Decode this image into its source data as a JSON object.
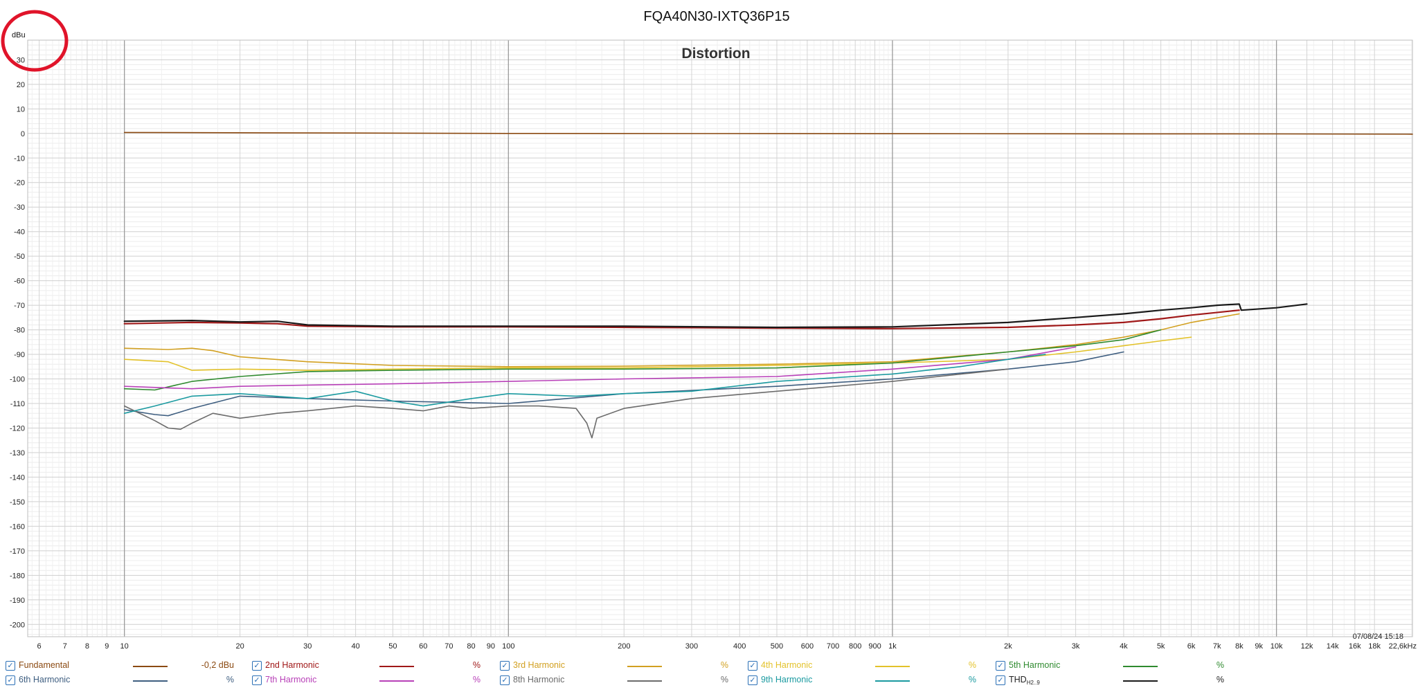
{
  "window": {
    "title": "FQA40N30-IXTQ36P15",
    "timestamp": "07/08/24 15:18"
  },
  "chart_data": {
    "type": "line",
    "title": "Distortion",
    "ylabel": "dBu",
    "xlabel": "",
    "xscale": "log",
    "xlim": [
      5.6,
      22600
    ],
    "ylim": [
      -205,
      38
    ],
    "grid": true,
    "x_ticks": [
      {
        "v": 6,
        "label": "6"
      },
      {
        "v": 7,
        "label": "7"
      },
      {
        "v": 8,
        "label": "8"
      },
      {
        "v": 9,
        "label": "9"
      },
      {
        "v": 10,
        "label": "10"
      },
      {
        "v": 20,
        "label": "20"
      },
      {
        "v": 30,
        "label": "30"
      },
      {
        "v": 40,
        "label": "40"
      },
      {
        "v": 50,
        "label": "50"
      },
      {
        "v": 60,
        "label": "60"
      },
      {
        "v": 70,
        "label": "70"
      },
      {
        "v": 80,
        "label": "80"
      },
      {
        "v": 90,
        "label": "90"
      },
      {
        "v": 100,
        "label": "100"
      },
      {
        "v": 200,
        "label": "200"
      },
      {
        "v": 300,
        "label": "300"
      },
      {
        "v": 400,
        "label": "400"
      },
      {
        "v": 500,
        "label": "500"
      },
      {
        "v": 600,
        "label": "600"
      },
      {
        "v": 700,
        "label": "700"
      },
      {
        "v": 800,
        "label": "800"
      },
      {
        "v": 900,
        "label": "900"
      },
      {
        "v": 1000,
        "label": "1k"
      },
      {
        "v": 2000,
        "label": "2k"
      },
      {
        "v": 3000,
        "label": "3k"
      },
      {
        "v": 4000,
        "label": "4k"
      },
      {
        "v": 5000,
        "label": "5k"
      },
      {
        "v": 6000,
        "label": "6k"
      },
      {
        "v": 7000,
        "label": "7k"
      },
      {
        "v": 8000,
        "label": "8k"
      },
      {
        "v": 9000,
        "label": "9k"
      },
      {
        "v": 10000,
        "label": "10k"
      },
      {
        "v": 12000,
        "label": "12k"
      },
      {
        "v": 14000,
        "label": "14k"
      },
      {
        "v": 16000,
        "label": "16k"
      },
      {
        "v": 18000,
        "label": "18k"
      },
      {
        "v": 22600,
        "label": "22,6kHz"
      }
    ],
    "y_ticks": [
      30,
      20,
      10,
      0,
      -10,
      -20,
      -30,
      -40,
      -50,
      -60,
      -70,
      -80,
      -90,
      -100,
      -110,
      -120,
      -130,
      -140,
      -150,
      -160,
      -170,
      -180,
      -190,
      -200
    ],
    "series": [
      {
        "name": "Fundamental",
        "color": "#8b4a12",
        "x": [
          10,
          100,
          1000,
          10000,
          22600
        ],
        "y": [
          0.4,
          0.0,
          -0.1,
          -0.2,
          -0.3
        ]
      },
      {
        "name": "2nd Harmonic",
        "color": "#a01818",
        "x": [
          10,
          15,
          20,
          25,
          30,
          50,
          100,
          200,
          500,
          1000,
          2000,
          3000,
          4000,
          5000,
          6000,
          8000
        ],
        "y": [
          -77.5,
          -77,
          -77.2,
          -77.5,
          -78.5,
          -78.8,
          -78.8,
          -79,
          -79.3,
          -79.5,
          -79,
          -78,
          -77,
          -75.5,
          -74,
          -72
        ]
      },
      {
        "name": "3rd Harmonic",
        "color": "#d2a020",
        "x": [
          10,
          13,
          15,
          17,
          20,
          30,
          50,
          100,
          200,
          500,
          1000,
          2000,
          3000,
          4000,
          5000,
          6000,
          8000
        ],
        "y": [
          -87.5,
          -88,
          -87.5,
          -88.5,
          -91,
          -93,
          -94.5,
          -95,
          -94.8,
          -94,
          -93,
          -89,
          -86,
          -83,
          -80,
          -77,
          -73.5
        ]
      },
      {
        "name": "4th Harmonic",
        "color": "#e3c22a",
        "x": [
          10,
          13,
          15,
          20,
          30,
          50,
          100,
          200,
          500,
          1000,
          2000,
          3000,
          4000,
          5000,
          6000
        ],
        "y": [
          -92,
          -93,
          -96.5,
          -96,
          -96.5,
          -96,
          -95.5,
          -95.5,
          -94.5,
          -93.5,
          -92,
          -89,
          -86.5,
          -84.5,
          -83
        ]
      },
      {
        "name": "5th Harmonic",
        "color": "#2f8a2f",
        "x": [
          10,
          12,
          15,
          20,
          30,
          50,
          100,
          200,
          500,
          1000,
          2000,
          3000,
          4000,
          5000
        ],
        "y": [
          -104,
          -104.5,
          -101,
          -99,
          -97,
          -96.5,
          -96,
          -96,
          -95.5,
          -93.5,
          -89,
          -86.5,
          -84,
          -80
        ]
      },
      {
        "name": "6th Harmonic",
        "color": "#3e5e80",
        "x": [
          10,
          12,
          13,
          15,
          20,
          30,
          50,
          100,
          200,
          500,
          1000,
          2000,
          3000,
          4000
        ],
        "y": [
          -112.5,
          -114.5,
          -115,
          -112,
          -107,
          -108,
          -109,
          -110,
          -106,
          -103,
          -100,
          -96,
          -93,
          -89
        ]
      },
      {
        "name": "7th Harmonic",
        "color": "#b840b8",
        "x": [
          10,
          15,
          20,
          30,
          50,
          100,
          200,
          500,
          1000,
          2000,
          3000
        ],
        "y": [
          -103,
          -104,
          -103,
          -102.5,
          -102,
          -101,
          -100,
          -99,
          -96,
          -92,
          -87
        ]
      },
      {
        "name": "8th Harmonic",
        "color": "#6b6b6b",
        "x": [
          10,
          12,
          13,
          14,
          15,
          17,
          20,
          25,
          30,
          40,
          50,
          60,
          70,
          80,
          100,
          120,
          150,
          160,
          165,
          170,
          200,
          300,
          500,
          1000,
          2000
        ],
        "y": [
          -111,
          -117,
          -120,
          -120.5,
          -118,
          -114,
          -116,
          -114,
          -113,
          -111,
          -112,
          -113,
          -111,
          -112,
          -111,
          -111,
          -112,
          -118,
          -124,
          -116,
          -112,
          -108,
          -105,
          -101,
          -96
        ]
      },
      {
        "name": "9th Harmonic",
        "color": "#1a9aa0",
        "x": [
          10,
          12,
          15,
          20,
          30,
          40,
          50,
          60,
          80,
          100,
          150,
          200,
          300,
          500,
          1000,
          1500,
          2000,
          2500
        ],
        "y": [
          -114,
          -111,
          -107,
          -106,
          -108,
          -105,
          -109,
          -111,
          -108,
          -106,
          -107,
          -106,
          -105,
          -101,
          -98,
          -95,
          -92,
          -90
        ]
      },
      {
        "name": "THD",
        "color": "#1a1a1a",
        "x": [
          10,
          15,
          20,
          25,
          30,
          50,
          100,
          200,
          500,
          1000,
          2000,
          3000,
          4000,
          5000,
          6000,
          7000,
          8000,
          8100,
          10000,
          12000
        ],
        "y": [
          -76.5,
          -76.2,
          -76.8,
          -76.5,
          -78,
          -78.5,
          -78.5,
          -78.5,
          -79,
          -78.8,
          -77,
          -75,
          -73.5,
          -72,
          -71,
          -70,
          -69.5,
          -72,
          -71,
          -69.5
        ]
      }
    ]
  },
  "legend": {
    "items": [
      {
        "name": "Fundamental",
        "color": "#8b4a12",
        "value": "-0,2 dBu",
        "checked": "✓"
      },
      {
        "name": "2nd Harmonic",
        "color": "#a01818",
        "value": "%",
        "checked": "✓"
      },
      {
        "name": "3rd Harmonic",
        "color": "#d2a020",
        "value": "%",
        "checked": "✓"
      },
      {
        "name": "4th Harmonic",
        "color": "#e3c22a",
        "value": "%",
        "checked": "✓"
      },
      {
        "name": "5th Harmonic",
        "color": "#2f8a2f",
        "value": "%",
        "checked": "✓"
      },
      {
        "name": "6th Harmonic",
        "color": "#3e5e80",
        "value": "%",
        "checked": "✓"
      },
      {
        "name": "7th Harmonic",
        "color": "#b840b8",
        "value": "%",
        "checked": "✓"
      },
      {
        "name": "8th Harmonic",
        "color": "#6b6b6b",
        "value": "%",
        "checked": "✓"
      },
      {
        "name": "9th Harmonic",
        "color": "#1a9aa0",
        "value": "%",
        "checked": "✓"
      },
      {
        "name": "THD",
        "sub": "H2..9",
        "color": "#1a1a1a",
        "value": "%",
        "checked": "✓"
      }
    ]
  }
}
